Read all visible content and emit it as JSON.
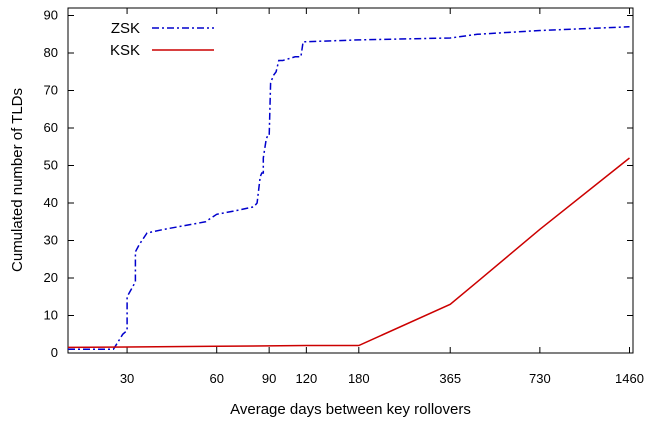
{
  "chart_data": {
    "type": "line",
    "xlabel": "Average days between key rollovers",
    "ylabel": "Cumulated number of TLDs",
    "x_scale": "log",
    "xlim": [
      19,
      1500
    ],
    "ylim": [
      0,
      92
    ],
    "x_ticks": [
      30,
      60,
      90,
      120,
      180,
      365,
      730,
      1460
    ],
    "y_ticks": [
      0,
      10,
      20,
      30,
      40,
      50,
      60,
      70,
      80,
      90
    ],
    "legend_position": "top-left",
    "grid": false,
    "series": [
      {
        "name": "ZSK",
        "color": "#0000cc",
        "style": "dash-dot",
        "x": [
          19,
          27,
          28,
          29,
          30,
          30,
          31,
          32,
          32,
          33,
          35,
          40,
          55,
          60,
          70,
          80,
          82,
          84,
          85,
          86,
          86,
          88,
          89,
          90,
          91,
          93,
          95,
          97,
          100,
          110,
          112,
          115,
          117,
          180,
          365,
          450,
          730,
          1460
        ],
        "y": [
          1,
          1,
          3,
          5,
          6,
          15,
          17,
          19,
          27,
          29,
          32,
          33,
          35,
          37,
          38,
          39,
          40,
          47,
          48,
          48,
          52,
          57,
          58,
          58,
          72,
          74,
          75,
          78,
          78,
          79,
          79,
          79,
          83,
          83.5,
          84,
          85,
          86,
          87
        ]
      },
      {
        "name": "KSK",
        "color": "#cc0000",
        "style": "solid",
        "x": [
          19,
          60,
          120,
          180,
          365,
          450,
          730,
          1460
        ],
        "y": [
          1.5,
          1.8,
          2,
          2,
          13,
          19,
          33,
          52
        ]
      }
    ]
  }
}
